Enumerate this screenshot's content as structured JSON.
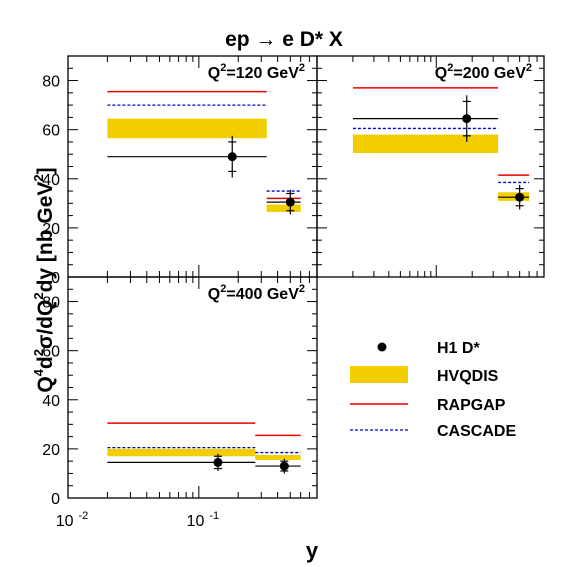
{
  "chart_data": {
    "type": "scatter",
    "title": "ep → e D* X",
    "ylabel": "Q4d2σ/dQ2dy [nb GeV2]",
    "xlabel": "y",
    "x_scale": "log",
    "xlim": [
      0.01,
      0.8
    ],
    "ylim": [
      0,
      90
    ],
    "y_ticks": [
      0,
      20,
      40,
      60,
      80
    ],
    "x_tick_labels": [
      {
        "base": "10",
        "exp": "-2",
        "value": 0.01
      },
      {
        "base": "10",
        "exp": "-1",
        "value": 0.1
      }
    ],
    "legend": {
      "placement": "bottom-right",
      "entries": [
        {
          "key": "data",
          "label": "H1 D*"
        },
        {
          "key": "hvqdis",
          "label": "HVQDIS",
          "color": "#f2cd00"
        },
        {
          "key": "rapgap",
          "label": "RAPGAP",
          "color": "#ee0000"
        },
        {
          "key": "cascade",
          "label": "CASCADE",
          "color": "#0000cc"
        }
      ]
    },
    "panels": [
      {
        "label_base": "Q",
        "label_exp": "2",
        "label_rest": "=120 GeV",
        "label_unit_exp": "2",
        "data": [
          {
            "x": 0.18,
            "y": 49,
            "ystat": 6,
            "ytot": 8.5,
            "xlo": 0.02,
            "xhi": 0.33
          },
          {
            "x": 0.5,
            "y": 30.5,
            "ystat": 3.5,
            "ytot": 5,
            "xlo": 0.33,
            "xhi": 0.6
          }
        ],
        "hvqdis": [
          {
            "xlo": 0.02,
            "xhi": 0.33,
            "ylo": 56.5,
            "yhi": 64.5
          },
          {
            "xlo": 0.33,
            "xhi": 0.6,
            "ylo": 26.5,
            "yhi": 29.5
          }
        ],
        "rapgap": [
          {
            "xlo": 0.02,
            "xhi": 0.33,
            "y": 75.5
          },
          {
            "xlo": 0.33,
            "xhi": 0.6,
            "y": 32
          }
        ],
        "cascade": [
          {
            "xlo": 0.02,
            "xhi": 0.33,
            "y": 70
          },
          {
            "xlo": 0.33,
            "xhi": 0.6,
            "y": 35
          }
        ]
      },
      {
        "label_base": "Q",
        "label_exp": "2",
        "label_rest": "=200 GeV",
        "label_unit_exp": "2",
        "data": [
          {
            "x": 0.18,
            "y": 64.5,
            "ystat": 7,
            "ytot": 9.5,
            "xlo": 0.02,
            "xhi": 0.33
          },
          {
            "x": 0.5,
            "y": 32.5,
            "ystat": 3.5,
            "ytot": 5,
            "xlo": 0.33,
            "xhi": 0.6
          }
        ],
        "hvqdis": [
          {
            "xlo": 0.02,
            "xhi": 0.33,
            "ylo": 50.5,
            "yhi": 58
          },
          {
            "xlo": 0.33,
            "xhi": 0.6,
            "ylo": 31,
            "yhi": 34.5
          }
        ],
        "rapgap": [
          {
            "xlo": 0.02,
            "xhi": 0.33,
            "y": 77
          },
          {
            "xlo": 0.33,
            "xhi": 0.6,
            "y": 41.5
          }
        ],
        "cascade": [
          {
            "xlo": 0.02,
            "xhi": 0.33,
            "y": 60.5
          },
          {
            "xlo": 0.33,
            "xhi": 0.6,
            "y": 38.5
          }
        ]
      },
      {
        "label_base": "Q",
        "label_exp": "2",
        "label_rest": "=400 GeV",
        "label_unit_exp": "2",
        "data": [
          {
            "x": 0.14,
            "y": 14.5,
            "ystat": 2.5,
            "ytot": 3.5,
            "xlo": 0.02,
            "xhi": 0.27
          },
          {
            "x": 0.45,
            "y": 13,
            "ystat": 2,
            "ytot": 3,
            "xlo": 0.27,
            "xhi": 0.6
          }
        ],
        "hvqdis": [
          {
            "xlo": 0.02,
            "xhi": 0.27,
            "ylo": 17,
            "yhi": 20
          },
          {
            "xlo": 0.27,
            "xhi": 0.6,
            "ylo": 15.5,
            "yhi": 17.5
          }
        ],
        "rapgap": [
          {
            "xlo": 0.02,
            "xhi": 0.27,
            "y": 30.5
          },
          {
            "xlo": 0.27,
            "xhi": 0.6,
            "y": 25.5
          }
        ],
        "cascade": [
          {
            "xlo": 0.02,
            "xhi": 0.27,
            "y": 20.5
          },
          {
            "xlo": 0.27,
            "xhi": 0.6,
            "y": 18.5
          }
        ]
      }
    ]
  }
}
